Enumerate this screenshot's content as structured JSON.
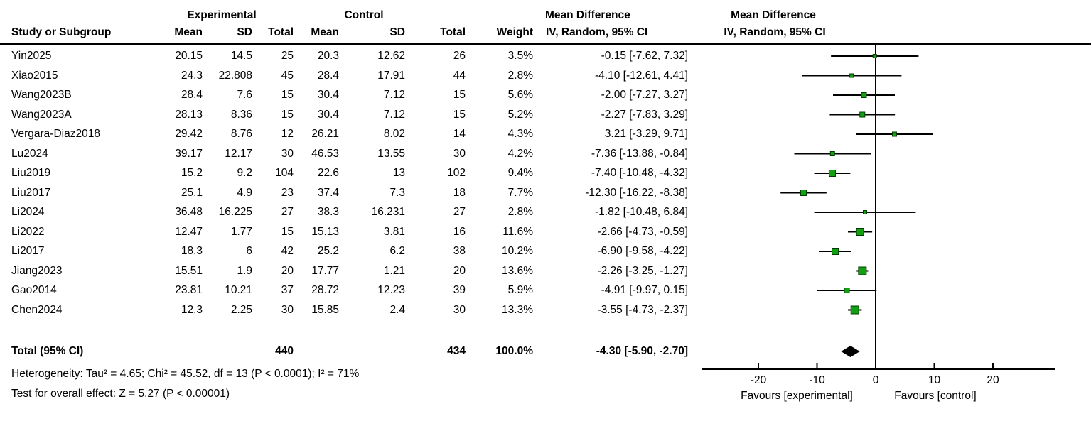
{
  "header": {
    "experimental": "Experimental",
    "control": "Control",
    "study": "Study or Subgroup",
    "mean": "Mean",
    "sd": "SD",
    "total": "Total",
    "weight": "Weight",
    "md_line1": "Mean Difference",
    "md_line2": "IV, Random, 95% CI"
  },
  "footer": {
    "heterogeneity": "Heterogeneity: Tau² = 4.65; Chi² = 45.52, df = 13 (P < 0.0001); I² = 71%",
    "overall_effect": "Test for overall effect: Z = 5.27 (P < 0.00001)"
  },
  "colors": {
    "marker_fill": "#12A012",
    "marker_border": "#003C00",
    "diamond": "#000000",
    "line": "#000000"
  },
  "chart_data": {
    "type": "forest",
    "effect_label": "Mean Difference",
    "model_label": "IV, Random, 95% CI",
    "xlim": [
      -30,
      30
    ],
    "ticks": [
      -20,
      -10,
      0,
      10,
      20
    ],
    "favours_left": "Favours [experimental]",
    "favours_right": "Favours [control]",
    "studies": [
      {
        "name": "Yin2025",
        "mean_e": "20.15",
        "sd_e": "14.5",
        "n_e": "25",
        "mean_c": "20.3",
        "sd_c": "12.62",
        "n_c": "26",
        "weight": "3.5%",
        "ci_text": "-0.15 [-7.62, 7.32]",
        "md": -0.15,
        "lo": -7.62,
        "hi": 7.32,
        "w": 3.5
      },
      {
        "name": "Xiao2015",
        "mean_e": "24.3",
        "sd_e": "22.808",
        "n_e": "45",
        "mean_c": "28.4",
        "sd_c": "17.91",
        "n_c": "44",
        "weight": "2.8%",
        "ci_text": "-4.10 [-12.61, 4.41]",
        "md": -4.1,
        "lo": -12.61,
        "hi": 4.41,
        "w": 2.8
      },
      {
        "name": "Wang2023B",
        "mean_e": "28.4",
        "sd_e": "7.6",
        "n_e": "15",
        "mean_c": "30.4",
        "sd_c": "7.12",
        "n_c": "15",
        "weight": "5.6%",
        "ci_text": "-2.00 [-7.27, 3.27]",
        "md": -2.0,
        "lo": -7.27,
        "hi": 3.27,
        "w": 5.6
      },
      {
        "name": "Wang2023A",
        "mean_e": "28.13",
        "sd_e": "8.36",
        "n_e": "15",
        "mean_c": "30.4",
        "sd_c": "7.12",
        "n_c": "15",
        "weight": "5.2%",
        "ci_text": "-2.27 [-7.83, 3.29]",
        "md": -2.27,
        "lo": -7.83,
        "hi": 3.29,
        "w": 5.2
      },
      {
        "name": "Vergara-Diaz2018",
        "mean_e": "29.42",
        "sd_e": "8.76",
        "n_e": "12",
        "mean_c": "26.21",
        "sd_c": "8.02",
        "n_c": "14",
        "weight": "4.3%",
        "ci_text": "3.21 [-3.29, 9.71]",
        "md": 3.21,
        "lo": -3.29,
        "hi": 9.71,
        "w": 4.3
      },
      {
        "name": "Lu2024",
        "mean_e": "39.17",
        "sd_e": "12.17",
        "n_e": "30",
        "mean_c": "46.53",
        "sd_c": "13.55",
        "n_c": "30",
        "weight": "4.2%",
        "ci_text": "-7.36 [-13.88, -0.84]",
        "md": -7.36,
        "lo": -13.88,
        "hi": -0.84,
        "w": 4.2
      },
      {
        "name": "Liu2019",
        "mean_e": "15.2",
        "sd_e": "9.2",
        "n_e": "104",
        "mean_c": "22.6",
        "sd_c": "13",
        "n_c": "102",
        "weight": "9.4%",
        "ci_text": "-7.40 [-10.48, -4.32]",
        "md": -7.4,
        "lo": -10.48,
        "hi": -4.32,
        "w": 9.4
      },
      {
        "name": "Liu2017",
        "mean_e": "25.1",
        "sd_e": "4.9",
        "n_e": "23",
        "mean_c": "37.4",
        "sd_c": "7.3",
        "n_c": "18",
        "weight": "7.7%",
        "ci_text": "-12.30 [-16.22, -8.38]",
        "md": -12.3,
        "lo": -16.22,
        "hi": -8.38,
        "w": 7.7
      },
      {
        "name": "Li2024",
        "mean_e": "36.48",
        "sd_e": "16.225",
        "n_e": "27",
        "mean_c": "38.3",
        "sd_c": "16.231",
        "n_c": "27",
        "weight": "2.8%",
        "ci_text": "-1.82 [-10.48, 6.84]",
        "md": -1.82,
        "lo": -10.48,
        "hi": 6.84,
        "w": 2.8
      },
      {
        "name": "Li2022",
        "mean_e": "12.47",
        "sd_e": "1.77",
        "n_e": "15",
        "mean_c": "15.13",
        "sd_c": "3.81",
        "n_c": "16",
        "weight": "11.6%",
        "ci_text": "-2.66 [-4.73, -0.59]",
        "md": -2.66,
        "lo": -4.73,
        "hi": -0.59,
        "w": 11.6
      },
      {
        "name": "Li2017",
        "mean_e": "18.3",
        "sd_e": "6",
        "n_e": "42",
        "mean_c": "25.2",
        "sd_c": "6.2",
        "n_c": "38",
        "weight": "10.2%",
        "ci_text": "-6.90 [-9.58, -4.22]",
        "md": -6.9,
        "lo": -9.58,
        "hi": -4.22,
        "w": 10.2
      },
      {
        "name": "Jiang2023",
        "mean_e": "15.51",
        "sd_e": "1.9",
        "n_e": "20",
        "mean_c": "17.77",
        "sd_c": "1.21",
        "n_c": "20",
        "weight": "13.6%",
        "ci_text": "-2.26 [-3.25, -1.27]",
        "md": -2.26,
        "lo": -3.25,
        "hi": -1.27,
        "w": 13.6
      },
      {
        "name": "Gao2014",
        "mean_e": "23.81",
        "sd_e": "10.21",
        "n_e": "37",
        "mean_c": "28.72",
        "sd_c": "12.23",
        "n_c": "39",
        "weight": "5.9%",
        "ci_text": "-4.91 [-9.97, 0.15]",
        "md": -4.91,
        "lo": -9.97,
        "hi": 0.15,
        "w": 5.9
      },
      {
        "name": "Chen2024",
        "mean_e": "12.3",
        "sd_e": "2.25",
        "n_e": "30",
        "mean_c": "15.85",
        "sd_c": "2.4",
        "n_c": "30",
        "weight": "13.3%",
        "ci_text": "-3.55 [-4.73, -2.37]",
        "md": -3.55,
        "lo": -4.73,
        "hi": -2.37,
        "w": 13.3
      }
    ],
    "total": {
      "label": "Total (95% CI)",
      "n_e": "440",
      "n_c": "434",
      "weight": "100.0%",
      "ci_text": "-4.30 [-5.90, -2.70]",
      "md": -4.3,
      "lo": -5.9,
      "hi": -2.7
    }
  }
}
